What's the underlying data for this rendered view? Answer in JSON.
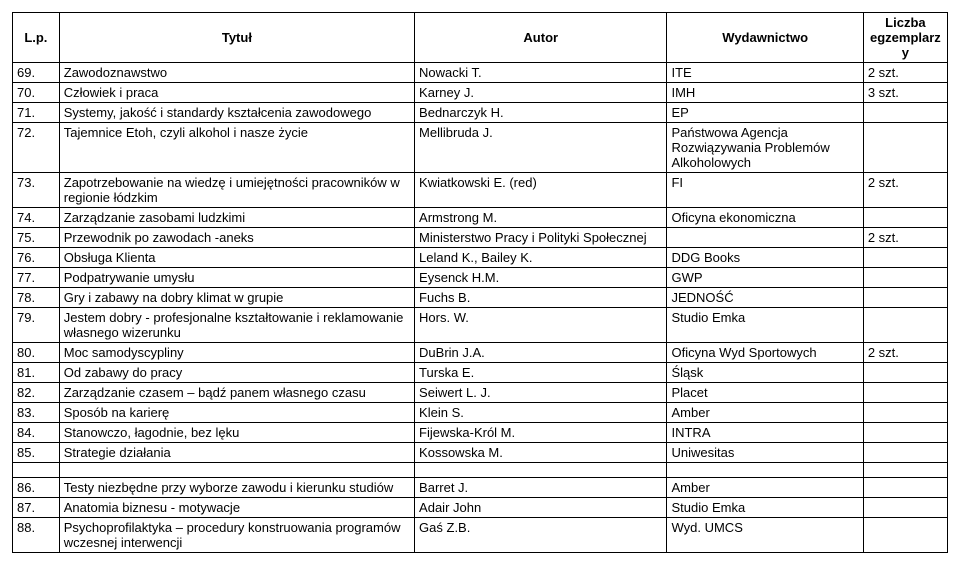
{
  "headers": {
    "lp": "L.p.",
    "tytul": "Tytuł",
    "autor": "Autor",
    "wydawnictwo": "Wydawnictwo",
    "egzemplarzy": "Liczba egzemplarzy"
  },
  "rows": [
    {
      "lp": "69.",
      "tytul": "Zawodoznawstwo",
      "autor": "Nowacki T.",
      "wyd": "ITE",
      "egz": "2 szt."
    },
    {
      "lp": "70.",
      "tytul": "Człowiek i praca",
      "autor": "Karney J.",
      "wyd": "IMH",
      "egz": "3 szt."
    },
    {
      "lp": "71.",
      "tytul": "Systemy, jakość i standardy kształcenia zawodowego",
      "autor": "Bednarczyk H.",
      "wyd": "EP",
      "egz": ""
    },
    {
      "lp": "72.",
      "tytul": "Tajemnice Etoh, czyli alkohol i nasze życie",
      "autor": "Mellibruda J.",
      "wyd": "Państwowa Agencja Rozwiązywania Problemów Alkoholowych",
      "egz": ""
    },
    {
      "lp": "73.",
      "tytul": "Zapotrzebowanie na wiedzę i umiejętności pracowników w regionie łódzkim",
      "autor": "Kwiatkowski E. (red)",
      "wyd": "FI",
      "egz": "2 szt."
    },
    {
      "lp": "74.",
      "tytul": "Zarządzanie zasobami ludzkimi",
      "autor": "Armstrong M.",
      "wyd": "Oficyna ekonomiczna",
      "egz": ""
    },
    {
      "lp": "75.",
      "tytul": "Przewodnik po zawodach -aneks",
      "autor": "Ministerstwo Pracy i Polityki Społecznej",
      "wyd": "",
      "egz": "2 szt."
    },
    {
      "lp": "76.",
      "tytul": "Obsługa Klienta",
      "autor": "Leland K., Bailey K.",
      "wyd": "DDG Books",
      "egz": ""
    },
    {
      "lp": "77.",
      "tytul": "Podpatrywanie umysłu",
      "autor": "Eysenck H.M.",
      "wyd": "GWP",
      "egz": ""
    },
    {
      "lp": "78.",
      "tytul": "Gry i zabawy na dobry klimat w grupie",
      "autor": "Fuchs B.",
      "wyd": "JEDNOŚĆ",
      "egz": ""
    },
    {
      "lp": "79.",
      "tytul": "Jestem dobry - profesjonalne kształtowanie i reklamowanie własnego wizerunku",
      "autor": "Hors. W.",
      "wyd": "Studio Emka",
      "egz": ""
    },
    {
      "lp": "80.",
      "tytul": "Moc samodyscypliny",
      "autor": "DuBrin J.A.",
      "wyd": "Oficyna Wyd Sportowych",
      "egz": "2 szt."
    },
    {
      "lp": "81.",
      "tytul": "Od zabawy do pracy",
      "autor": "Turska E.",
      "wyd": "Śląsk",
      "egz": ""
    },
    {
      "lp": "82.",
      "tytul": "Zarządzanie czasem – bądź panem własnego czasu",
      "autor": "Seiwert L. J.",
      "wyd": "Placet",
      "egz": ""
    },
    {
      "lp": "83.",
      "tytul": "Sposób na karierę",
      "autor": "Klein S.",
      "wyd": "Amber",
      "egz": ""
    },
    {
      "lp": "84.",
      "tytul": "Stanowczo, łagodnie, bez lęku",
      "autor": "Fijewska-Król M.",
      "wyd": "INTRA",
      "egz": ""
    },
    {
      "lp": "85.",
      "tytul": "Strategie działania",
      "autor": "Kossowska M.",
      "wyd": "Uniwesitas",
      "egz": ""
    }
  ],
  "rows2": [
    {
      "lp": "86.",
      "tytul": "Testy niezbędne przy wyborze zawodu i kierunku studiów",
      "autor": "Barret J.",
      "wyd": "Amber",
      "egz": ""
    },
    {
      "lp": "87.",
      "tytul": "Anatomia biznesu - motywacje",
      "autor": "Adair John",
      "wyd": "Studio Emka",
      "egz": ""
    },
    {
      "lp": "88.",
      "tytul": "Psychoprofilaktyka – procedury konstruowania programów wczesnej interwencji",
      "autor": "Gaś Z.B.",
      "wyd": "Wyd. UMCS",
      "egz": ""
    }
  ],
  "style": {
    "font_family": "Arial, Helvetica, sans-serif",
    "font_size_pt": 13,
    "border_color": "#000000",
    "background_color": "#ffffff",
    "text_color": "#000000",
    "col_widths_pct": {
      "lp": 5,
      "tytul": 38,
      "autor": 27,
      "wydawnictwo": 21,
      "egzemplarzy": 9
    }
  }
}
